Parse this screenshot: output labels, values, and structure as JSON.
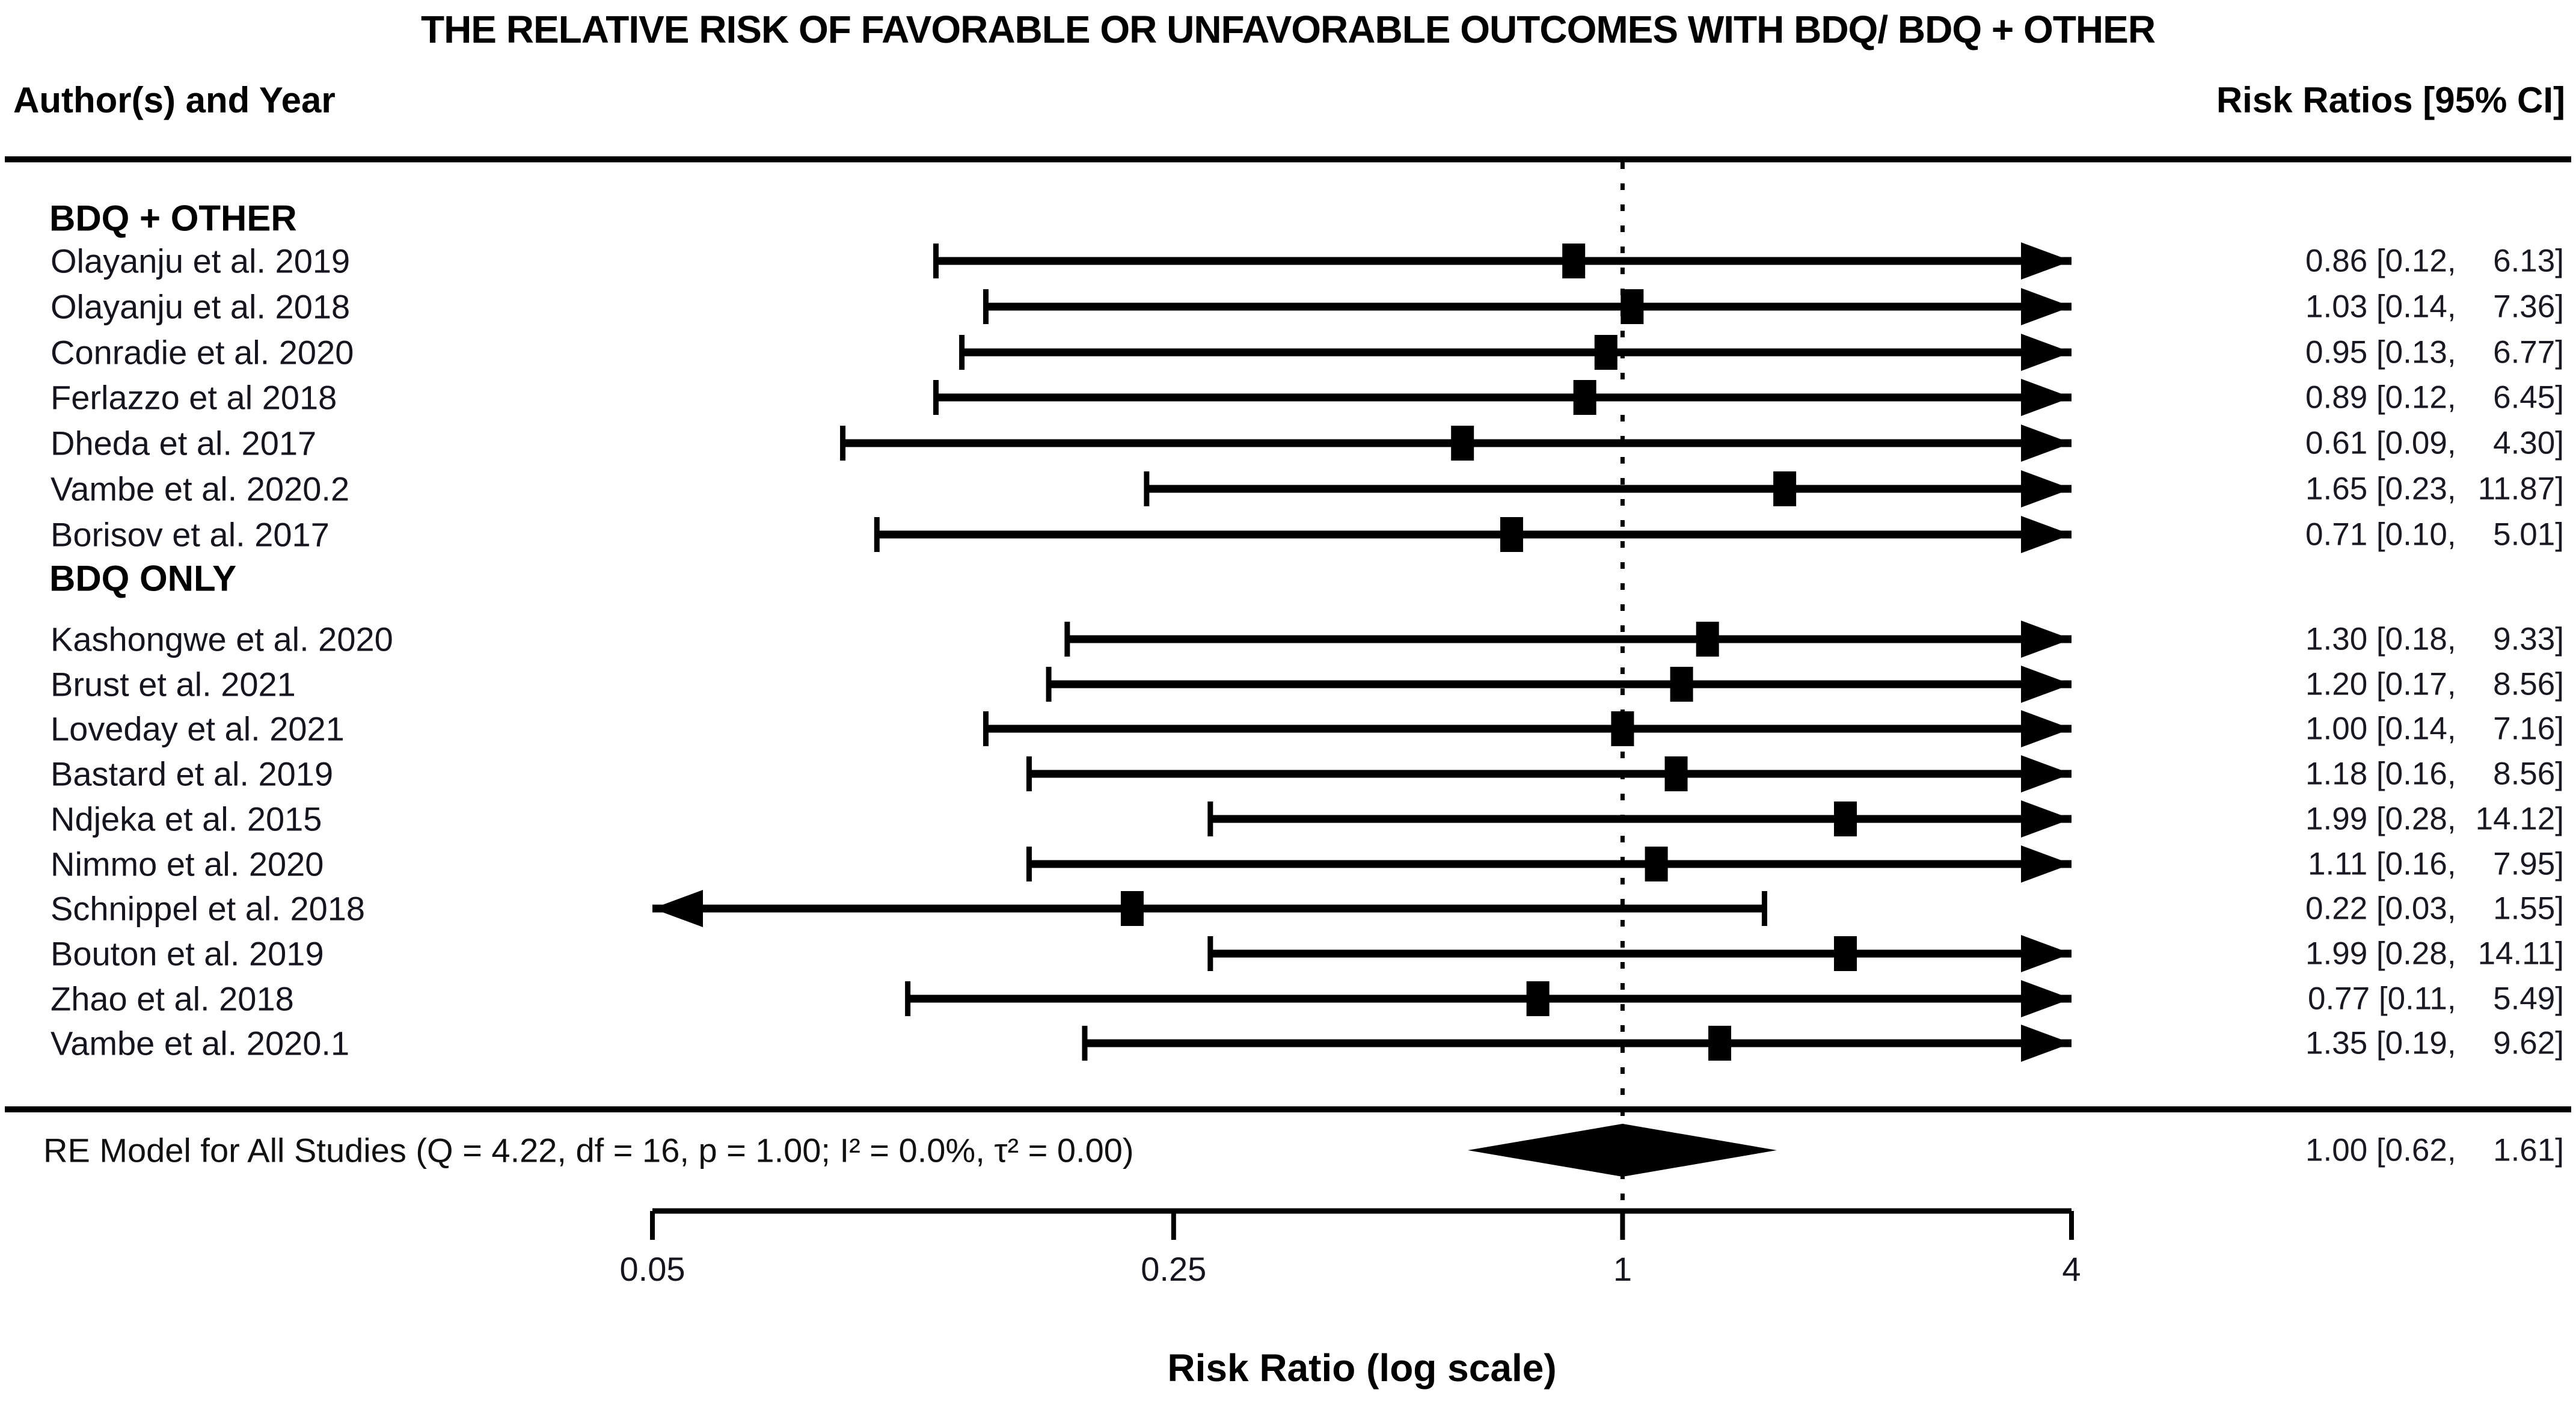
{
  "title": "THE RELATIVE RISK OF FAVORABLE OR UNFAVORABLE OUTCOMES WITH BDQ/ BDQ + OTHER",
  "columns": {
    "left": "Author(s) and Year",
    "right": "Risk Ratios [95% CI]"
  },
  "chart_data": {
    "type": "forest",
    "x_axis": {
      "label": "Risk Ratio (log scale)",
      "scale": "log",
      "range": [
        0.05,
        4
      ],
      "ticks": [
        "0.05",
        "0.25",
        "1",
        "4"
      ],
      "reference_line": "1"
    },
    "groups": [
      {
        "label": "BDQ + OTHER",
        "studies": [
          {
            "label": "Olayanju et al. 2019",
            "rr": "0.86",
            "ci_low": "0.12",
            "ci_high": "6.13"
          },
          {
            "label": "Olayanju et al. 2018",
            "rr": "1.03",
            "ci_low": "0.14",
            "ci_high": "7.36"
          },
          {
            "label": "Conradie et al. 2020",
            "rr": "0.95",
            "ci_low": "0.13",
            "ci_high": "6.77"
          },
          {
            "label": "Ferlazzo et al 2018",
            "rr": "0.89",
            "ci_low": "0.12",
            "ci_high": "6.45"
          },
          {
            "label": "Dheda et al. 2017",
            "rr": "0.61",
            "ci_low": "0.09",
            "ci_high": "4.30"
          },
          {
            "label": "Vambe et al. 2020.2",
            "rr": "1.65",
            "ci_low": "0.23",
            "ci_high": "11.87"
          },
          {
            "label": "Borisov et al. 2017",
            "rr": "0.71",
            "ci_low": "0.10",
            "ci_high": "5.01"
          }
        ]
      },
      {
        "label": "BDQ ONLY",
        "studies": [
          {
            "label": "Kashongwe et al. 2020",
            "rr": "1.30",
            "ci_low": "0.18",
            "ci_high": "9.33"
          },
          {
            "label": "Brust et al. 2021",
            "rr": "1.20",
            "ci_low": "0.17",
            "ci_high": "8.56"
          },
          {
            "label": "Loveday et al. 2021",
            "rr": "1.00",
            "ci_low": "0.14",
            "ci_high": "7.16"
          },
          {
            "label": "Bastard et al. 2019",
            "rr": "1.18",
            "ci_low": "0.16",
            "ci_high": "8.56"
          },
          {
            "label": "Ndjeka et al. 2015",
            "rr": "1.99",
            "ci_low": "0.28",
            "ci_high": "14.12"
          },
          {
            "label": "Nimmo et al. 2020",
            "rr": "1.11",
            "ci_low": "0.16",
            "ci_high": "7.95"
          },
          {
            "label": "Schnippel et al. 2018",
            "rr": "0.22",
            "ci_low": "0.03",
            "ci_high": "1.55"
          },
          {
            "label": "Bouton et al. 2019",
            "rr": "1.99",
            "ci_low": "0.28",
            "ci_high": "14.11"
          },
          {
            "label": "Zhao et al. 2018",
            "rr": "0.77",
            "ci_low": "0.11",
            "ci_high": "5.49"
          },
          {
            "label": "Vambe et al. 2020.1",
            "rr": "1.35",
            "ci_low": "0.19",
            "ci_high": "9.62"
          }
        ]
      }
    ],
    "summary": {
      "label": "RE Model for All Studies (Q = 4.22, df = 16, p = 1.00; I² = 0.0%, τ² = 0.00)",
      "rr": "1.00",
      "ci_low": "0.62",
      "ci_high": "1.61"
    }
  }
}
